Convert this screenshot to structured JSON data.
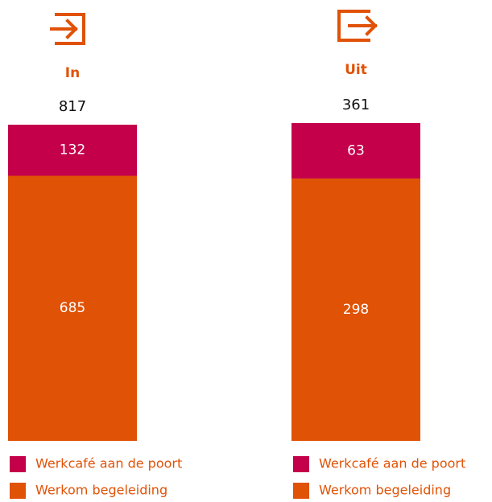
{
  "chart_data": [
    {
      "type": "stacked-bar",
      "title": "In",
      "total": 817,
      "series": [
        {
          "name": "Werkcafé aan de poort",
          "color": "#c4004a",
          "values": [
            132
          ]
        },
        {
          "name": "Werkom begeleiding",
          "color": "#e05206",
          "values": [
            685
          ]
        }
      ]
    },
    {
      "type": "stacked-bar",
      "title": "Uit",
      "total": 361,
      "series": [
        {
          "name": "Werkcafé aan de poort",
          "color": "#c4004a",
          "values": [
            63
          ]
        },
        {
          "name": "Werkom begeleiding",
          "color": "#e05206",
          "values": [
            298
          ]
        }
      ]
    }
  ]
}
